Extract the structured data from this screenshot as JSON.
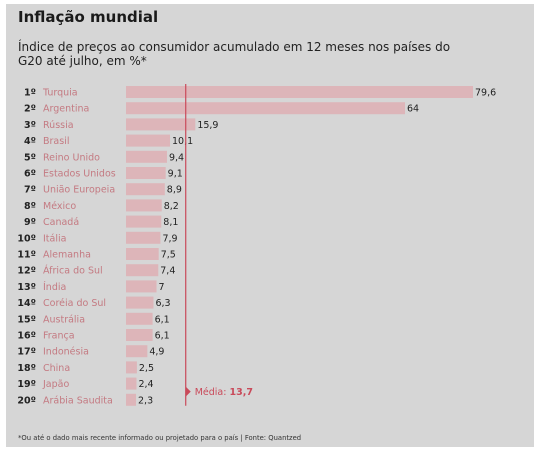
{
  "chart_data": {
    "type": "bar",
    "orientation": "horizontal",
    "title": "Inflação mundial",
    "subtitle": "Índice de preços ao consumidor acumulado em 12 meses nos países do G20 até julho, em %*",
    "ranks": [
      "1º",
      "2º",
      "3º",
      "4º",
      "5º",
      "6º",
      "7º",
      "8º",
      "9º",
      "10º",
      "11º",
      "12º",
      "13º",
      "14º",
      "15º",
      "16º",
      "17º",
      "18º",
      "19º",
      "20º"
    ],
    "categories": [
      "Turquia",
      "Argentina",
      "Rússia",
      "Brasil",
      "Reino Unido",
      "Estados Unidos",
      "União Europeia",
      "México",
      "Canadá",
      "Itália",
      "Alemanha",
      "África do Sul",
      "Índia",
      "Coréia do Sul",
      "Austrália",
      "França",
      "Indonésia",
      "China",
      "Japão",
      "Arábia Saudita"
    ],
    "values": [
      79.6,
      64,
      15.9,
      10.1,
      9.4,
      9.1,
      8.9,
      8.2,
      8.1,
      7.9,
      7.5,
      7.4,
      7,
      6.3,
      6.1,
      6.1,
      4.9,
      2.5,
      2.4,
      2.3
    ],
    "value_labels": [
      "79,6",
      "64",
      "15,9",
      "10,1",
      "9,4",
      "9,1",
      "8,9",
      "8,2",
      "8,1",
      "7,9",
      "7,5",
      "7,4",
      "7",
      "6,3",
      "6,1",
      "6,1",
      "4,9",
      "2,5",
      "2,4",
      "2,3"
    ],
    "average": {
      "label": "Média:",
      "value": 13.7,
      "value_label": "13,7"
    },
    "xlim": [
      0,
      79.6
    ],
    "grid": false,
    "colors": {
      "bar": "#ddb5b9",
      "average_line": "#c94a5a",
      "category_text": "#c47a82",
      "background": "#d6d6d6"
    },
    "footnote": "*Ou até o dado mais recente informado ou projetado para o país | Fonte: Quantzed"
  }
}
